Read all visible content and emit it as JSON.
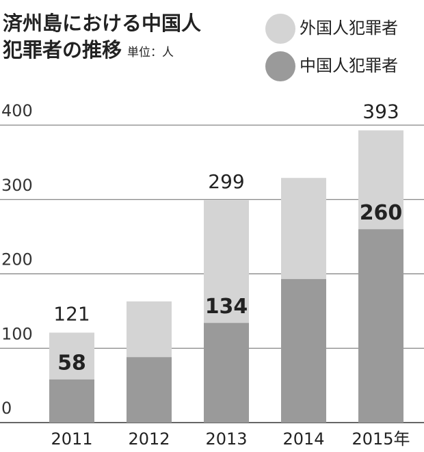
{
  "chart_data": {
    "type": "bar",
    "title": "済州島における中国人",
    "title_line2": "犯罪者の推移",
    "unit": "単位：人",
    "categories": [
      "2011",
      "2012",
      "2013",
      "2014",
      "2015年"
    ],
    "series": [
      {
        "name": "外国人犯罪者",
        "color": "#d4d4d4",
        "values": [
          121,
          163,
          299,
          329,
          393
        ],
        "value_labels": [
          "121",
          null,
          "299",
          null,
          "393"
        ]
      },
      {
        "name": "中国人犯罪者",
        "color": "#9a9a9a",
        "values": [
          58,
          88,
          134,
          193,
          260
        ],
        "value_labels": [
          "58",
          null,
          "134",
          null,
          "260"
        ]
      }
    ],
    "ylim": [
      0,
      400
    ],
    "yticks": [
      0,
      100,
      200,
      300,
      400
    ],
    "grid": true
  }
}
